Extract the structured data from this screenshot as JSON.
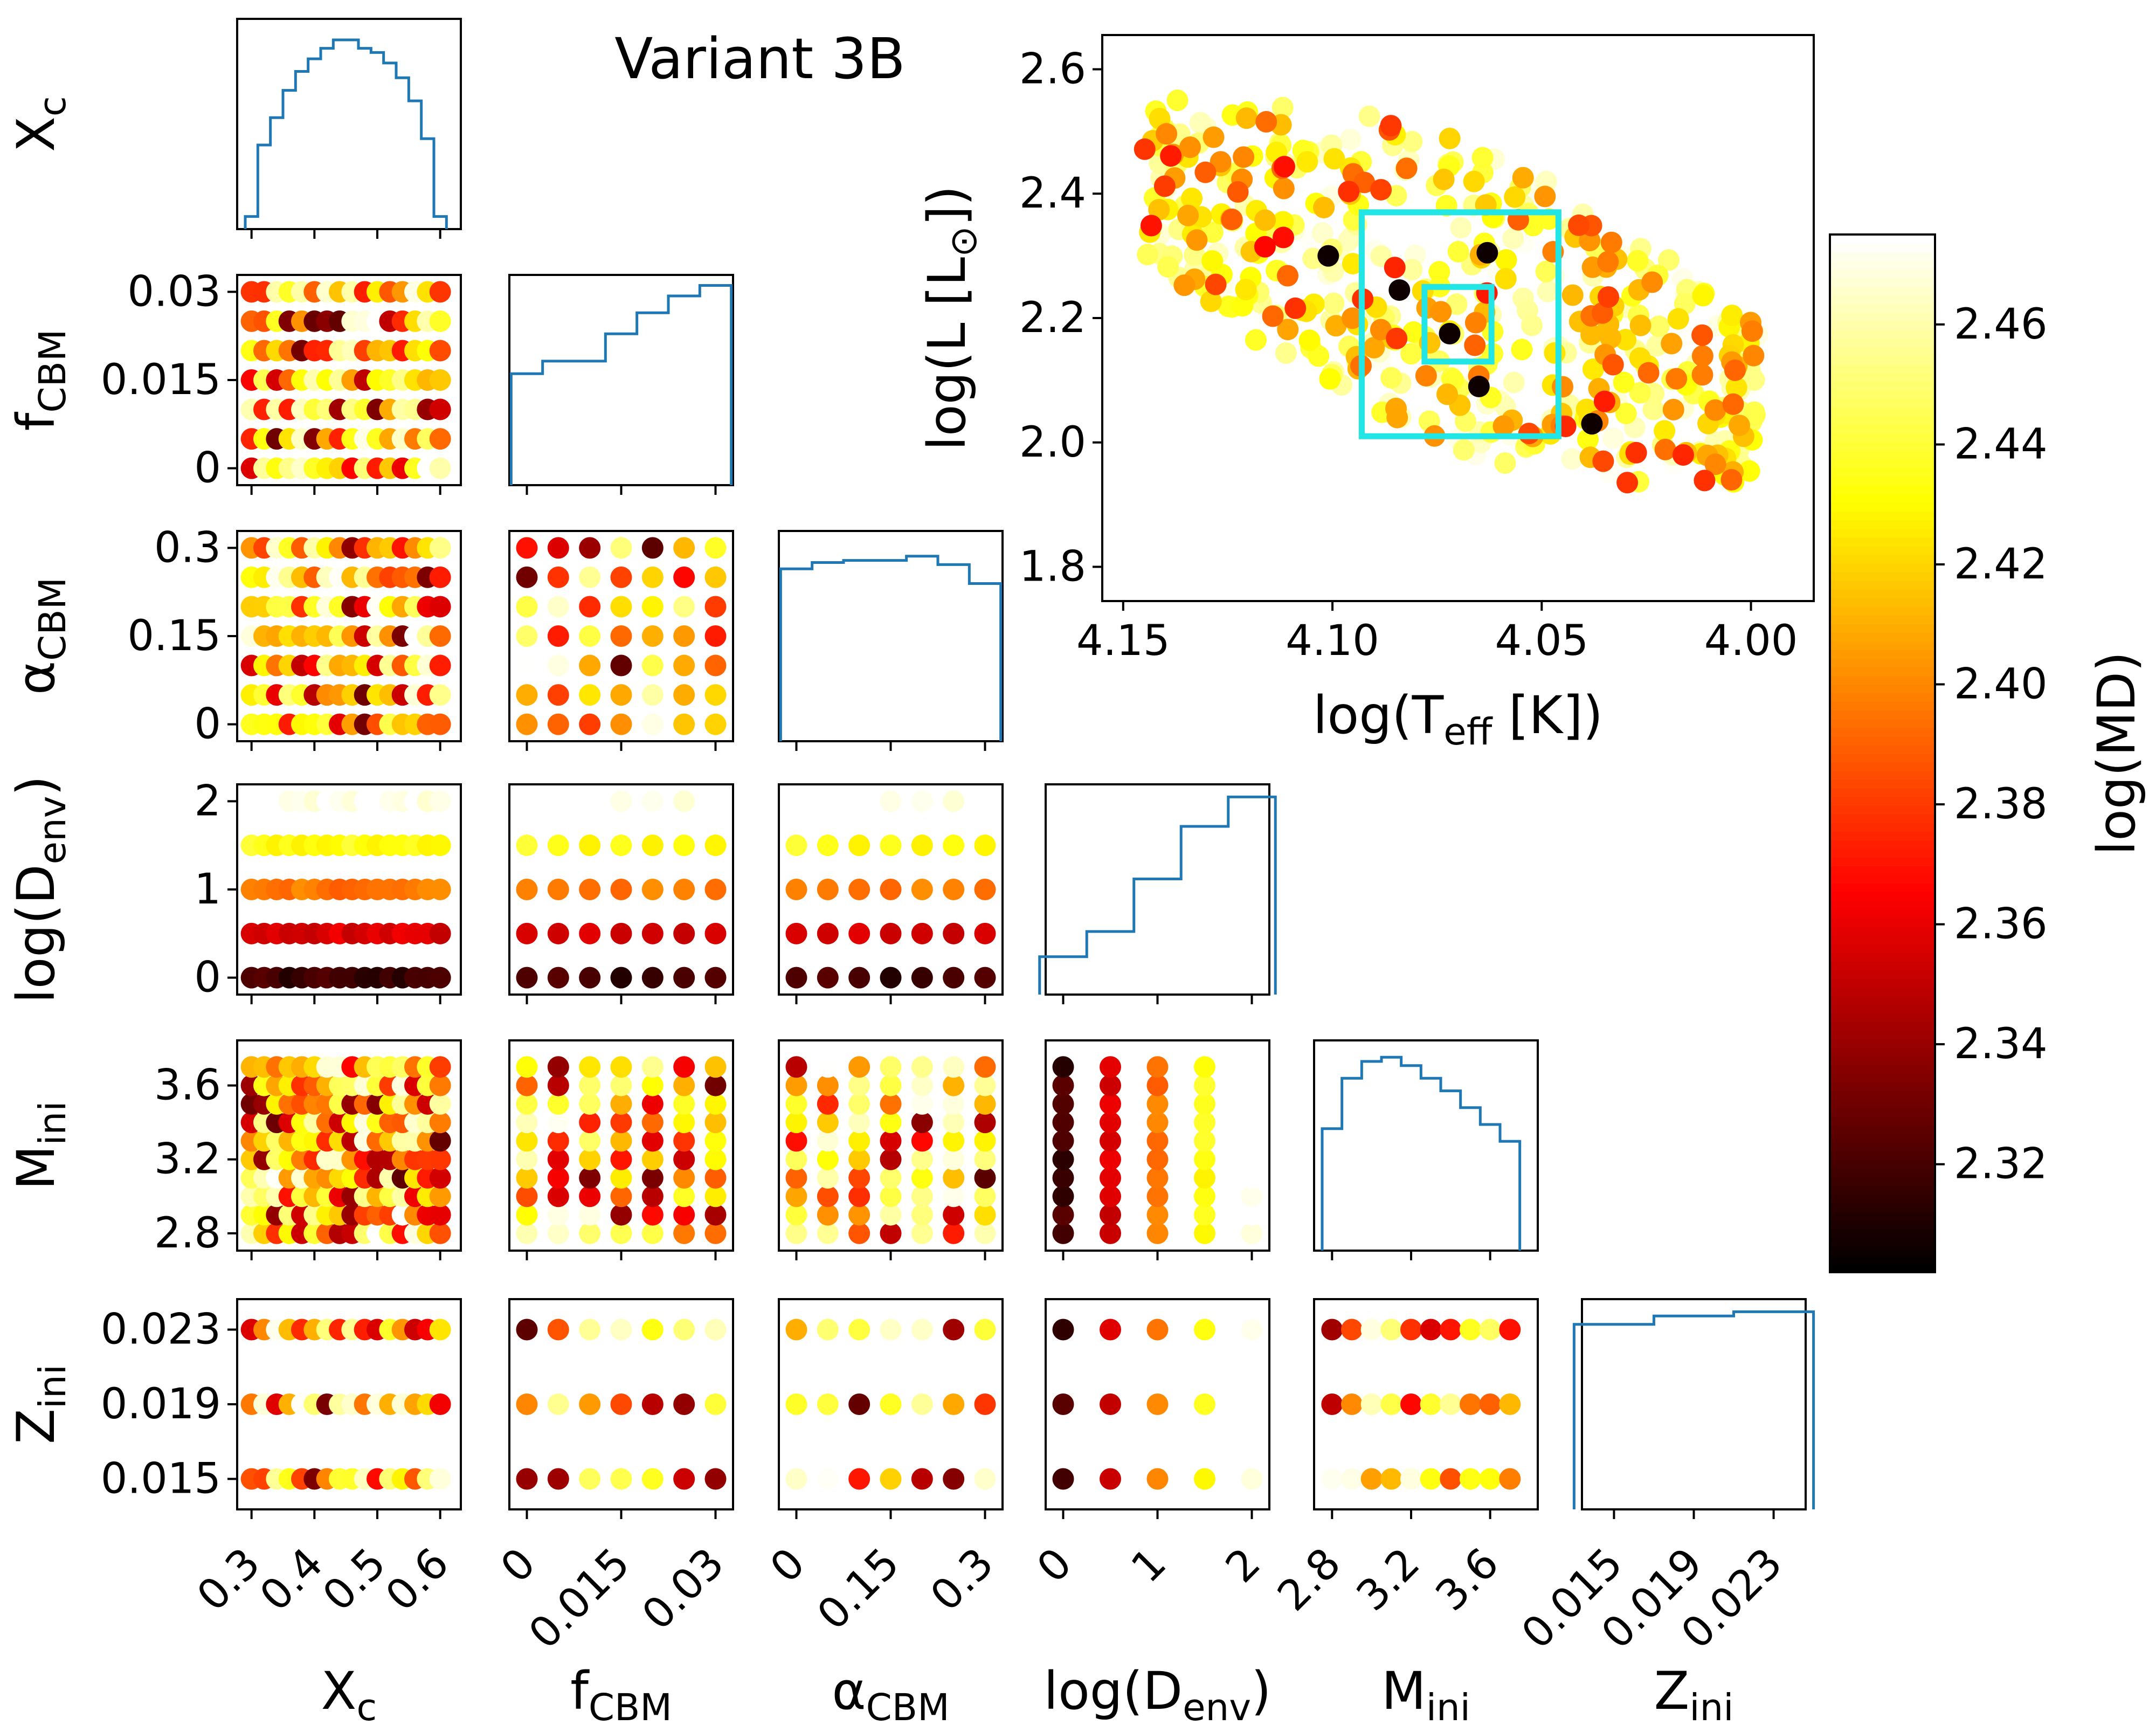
{
  "chart_data": {
    "type": "corner-plot",
    "title": "Variant 3B",
    "colormap": "hot",
    "colorbar": {
      "label": "log(MD)",
      "min": 2.302,
      "max": 2.475,
      "ticks": [
        "2.32",
        "2.34",
        "2.36",
        "2.38",
        "2.40",
        "2.42",
        "2.44",
        "2.46"
      ]
    },
    "parameters": [
      {
        "key": "Xc",
        "base": "X",
        "sub": "c",
        "range": [
          0.29,
          0.62
        ],
        "grid": [
          0.3,
          0.32,
          0.34,
          0.36,
          0.38,
          0.4,
          0.42,
          0.44,
          0.46,
          0.48,
          0.5,
          0.52,
          0.54,
          0.56,
          0.58,
          0.6
        ],
        "ticks": [
          0.3,
          0.4,
          0.5,
          0.6
        ],
        "tick_labels": [
          "0.3",
          "0.4",
          "0.5",
          "0.6"
        ],
        "side_labels": [],
        "hist": [
          0.06,
          0.4,
          0.53,
          0.66,
          0.75,
          0.81,
          0.86,
          0.9,
          0.9,
          0.86,
          0.84,
          0.79,
          0.72,
          0.61,
          0.43,
          0.06
        ]
      },
      {
        "key": "fCBM",
        "base": "f",
        "sub": "CBM",
        "range": [
          -0.0015,
          0.0315
        ],
        "grid": [
          0.0,
          0.005,
          0.01,
          0.015,
          0.02,
          0.025,
          0.03
        ],
        "ticks": [
          0.0,
          0.015,
          0.03
        ],
        "tick_labels": [
          "0",
          "0.015",
          "0.03"
        ],
        "side_labels": [
          "0.03",
          "0.015",
          "0"
        ],
        "hist": [
          0.53,
          0.59,
          0.59,
          0.72,
          0.82,
          0.9,
          0.95
        ]
      },
      {
        "key": "aCBM",
        "base": "α",
        "sub": "CBM",
        "range": [
          -0.015,
          0.315
        ],
        "grid": [
          0.0,
          0.05,
          0.1,
          0.15,
          0.2,
          0.25,
          0.3
        ],
        "ticks": [
          0.0,
          0.15,
          0.3
        ],
        "tick_labels": [
          "0",
          "0.15",
          "0.3"
        ],
        "side_labels": [
          "0.3",
          "0.15",
          "0"
        ],
        "hist": [
          0.82,
          0.85,
          0.86,
          0.86,
          0.88,
          0.84,
          0.75
        ]
      },
      {
        "key": "logDenv",
        "base": "log(D",
        "sub": "env",
        "suffix": ")",
        "range": [
          -0.1,
          2.1
        ],
        "grid": [
          0.0,
          0.5,
          1.0,
          1.5,
          2.0
        ],
        "ticks": [
          0,
          1,
          2
        ],
        "tick_labels": [
          "0",
          "1",
          "2"
        ],
        "side_labels": [
          "2",
          "1",
          "0"
        ],
        "hist": [
          0.18,
          0.3,
          0.55,
          0.8,
          0.94
        ]
      },
      {
        "key": "Mini",
        "base": "M",
        "sub": "ini",
        "range": [
          2.75,
          3.8
        ],
        "grid": [
          2.8,
          2.9,
          3.0,
          3.1,
          3.2,
          3.3,
          3.4,
          3.5,
          3.6,
          3.7
        ],
        "ticks": [
          2.8,
          3.2,
          3.6
        ],
        "tick_labels": [
          "2.8",
          "3.2",
          "3.6"
        ],
        "side_labels": [
          "3.6",
          "3.2",
          "2.8"
        ],
        "hist": [
          0.58,
          0.82,
          0.9,
          0.92,
          0.88,
          0.82,
          0.76,
          0.68,
          0.6,
          0.52
        ]
      },
      {
        "key": "Zini",
        "base": "Z",
        "sub": "ini",
        "range": [
          0.0138,
          0.0242
        ],
        "grid": [
          0.015,
          0.019,
          0.023
        ],
        "ticks": [
          0.015,
          0.019,
          0.023
        ],
        "tick_labels": [
          "0.015",
          "0.019",
          "0.023"
        ],
        "side_labels": [
          "0.023",
          "0.019",
          "0.015"
        ],
        "hist": [
          0.88,
          0.92,
          0.94
        ]
      }
    ],
    "hr_diagram": {
      "xlabel": "log(T",
      "xlabel_sub": "eff",
      "xlabel_suffix": " [K])",
      "ylabel": "log(L [L",
      "ylabel_sub": "⊙",
      "ylabel_suffix": "])",
      "xlim": [
        4.155,
        3.985
      ],
      "ylim": [
        1.745,
        2.655
      ],
      "xticks": [
        "4.15",
        "4.10",
        "4.05",
        "4.00"
      ],
      "yticks": [
        "2.6",
        "2.4",
        "2.2",
        "2.0",
        "1.8"
      ],
      "error_boxes": [
        {
          "teff": [
            4.046,
            4.093
          ],
          "logL": [
            2.01,
            2.37
          ]
        },
        {
          "teff": [
            4.062,
            4.078
          ],
          "logL": [
            2.13,
            2.25
          ]
        }
      ],
      "best_models": [
        [
          4.063,
          2.305
        ],
        [
          4.072,
          2.175
        ],
        [
          4.101,
          2.3
        ],
        [
          4.084,
          2.245
        ],
        [
          4.065,
          2.09
        ],
        [
          4.038,
          2.03
        ]
      ]
    }
  }
}
